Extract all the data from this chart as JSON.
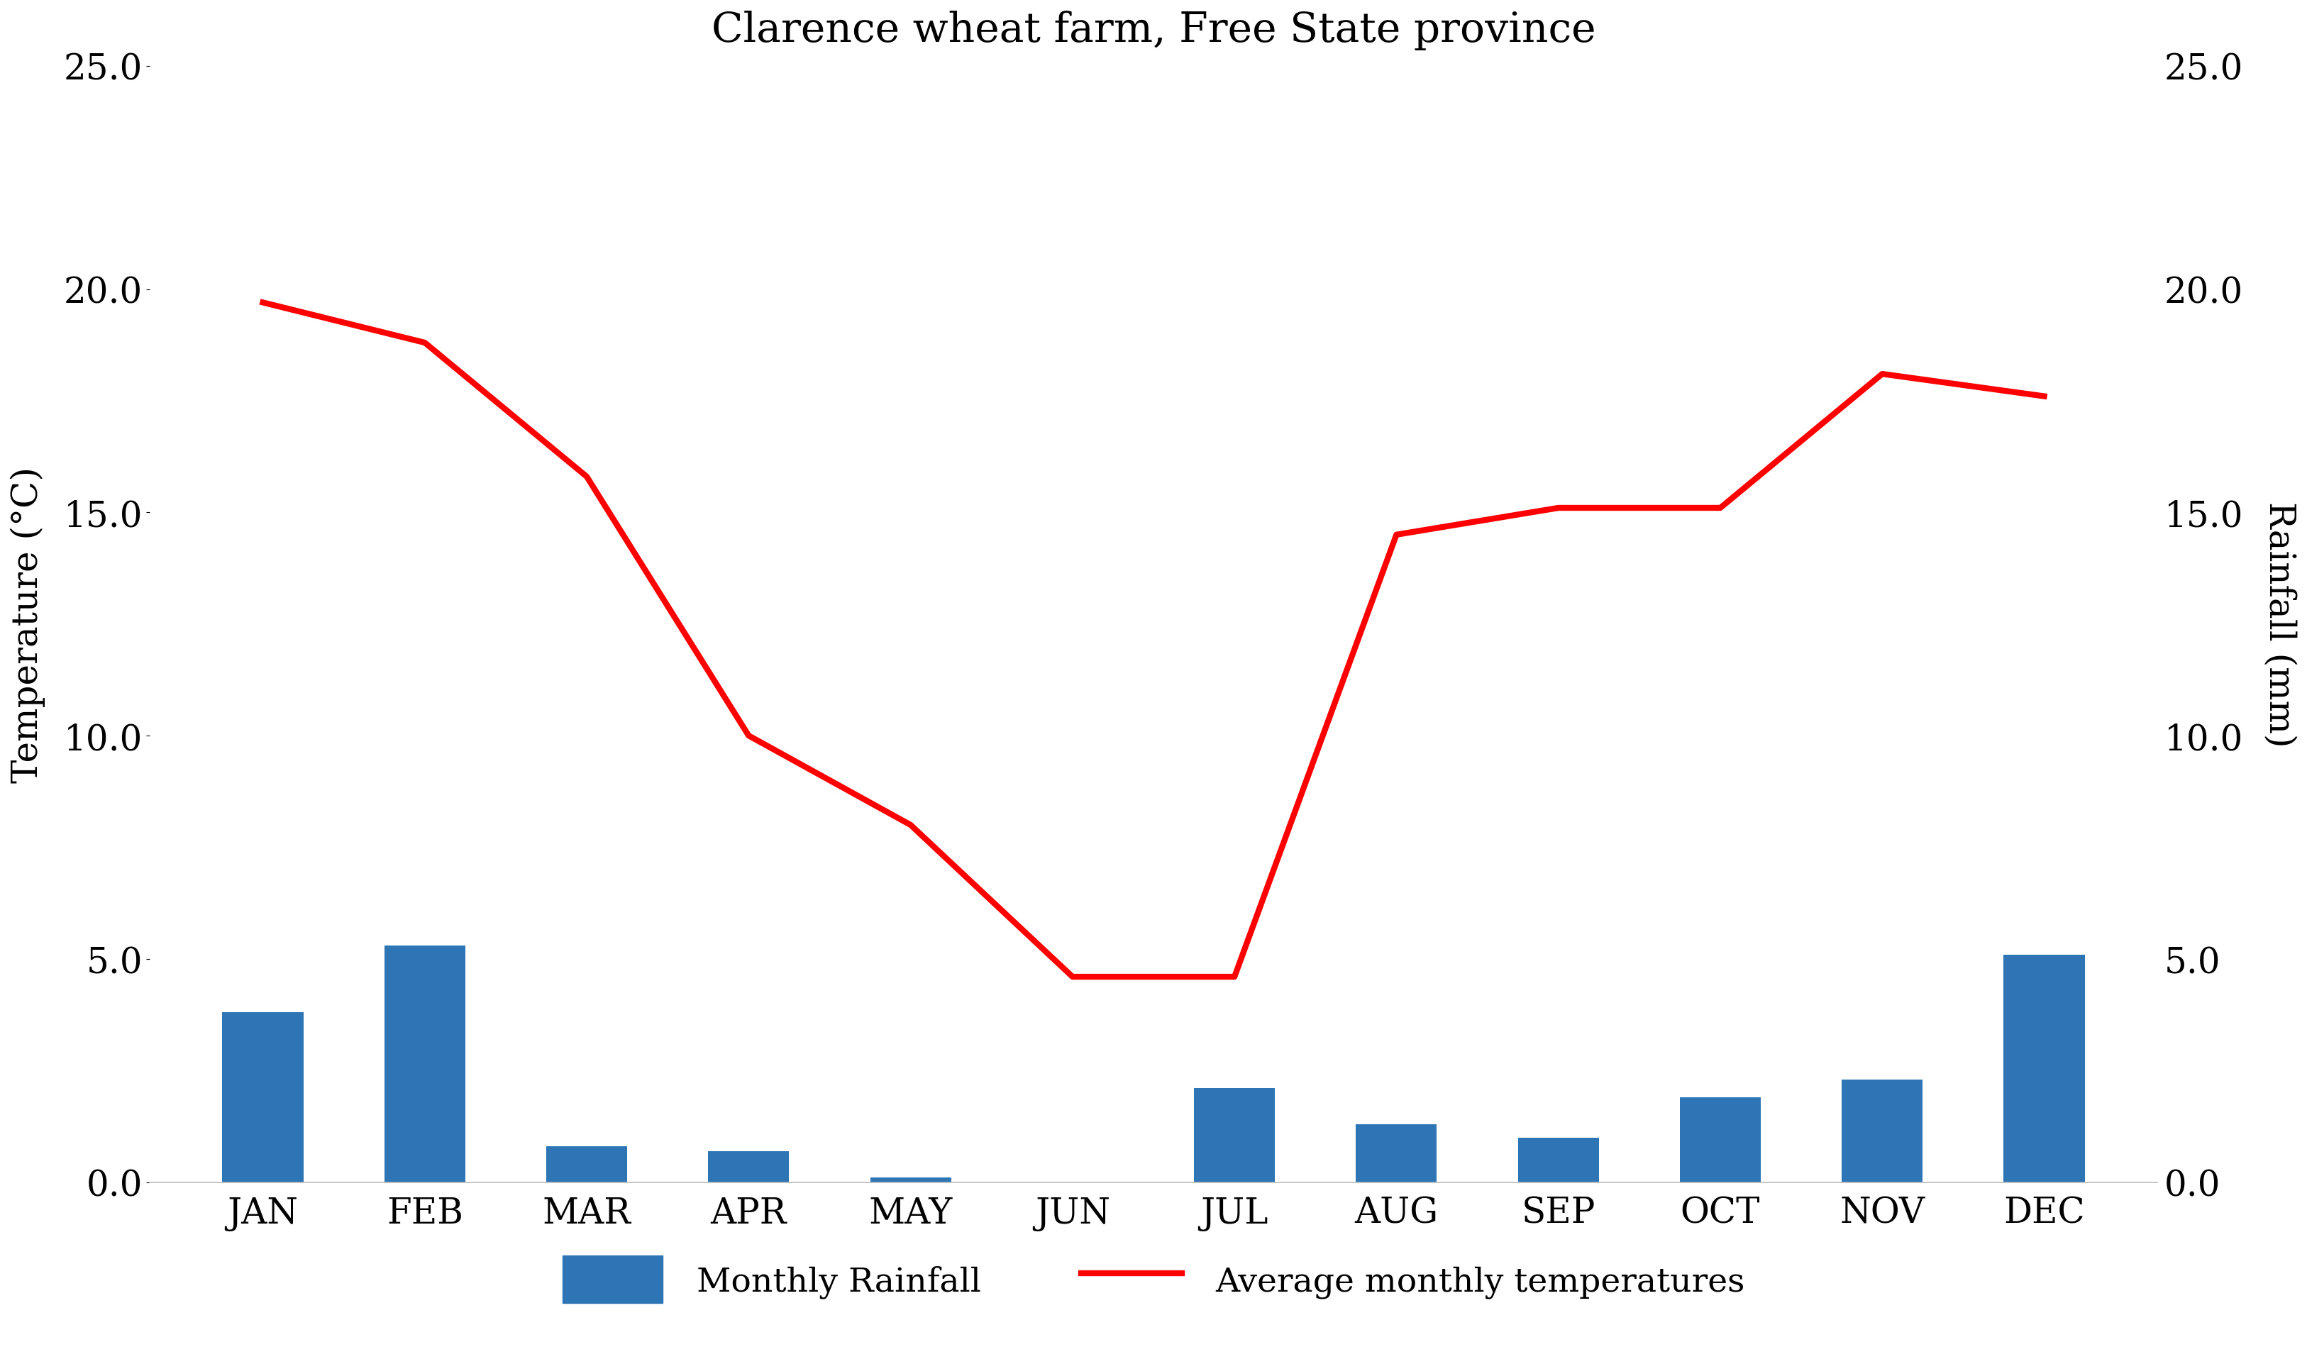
{
  "title": "Clarence wheat farm, Free State province",
  "months": [
    "JAN",
    "FEB",
    "MAR",
    "APR",
    "MAY",
    "JUN",
    "JUL",
    "AUG",
    "SEP",
    "OCT",
    "NOV",
    "DEC"
  ],
  "rainfall_mm": [
    3.8,
    5.3,
    0.8,
    0.7,
    0.1,
    0.0,
    2.1,
    1.3,
    1.0,
    1.9,
    2.3,
    5.1
  ],
  "temperature_c_all": [
    19.7,
    18.8,
    15.8,
    10.0,
    8.0,
    4.6,
    4.6,
    14.5,
    15.1,
    15.1,
    18.1,
    17.6
  ],
  "bar_color": "#2E75B6",
  "line_color": "#FF0000",
  "ylim": [
    0.0,
    25.0
  ],
  "yticks": [
    0.0,
    5.0,
    10.0,
    15.0,
    20.0,
    25.0
  ],
  "ylabel_left": "Temperature (°C)",
  "ylabel_right": "Rainfall (mm)",
  "legend_rainfall": "Monthly Rainfall",
  "legend_temp": "Average monthly temperatures",
  "background_color": "#ffffff",
  "title_fontsize": 42,
  "axis_label_fontsize": 36,
  "tick_fontsize": 36,
  "legend_fontsize": 34,
  "line_width": 6.0,
  "bar_width": 0.5
}
